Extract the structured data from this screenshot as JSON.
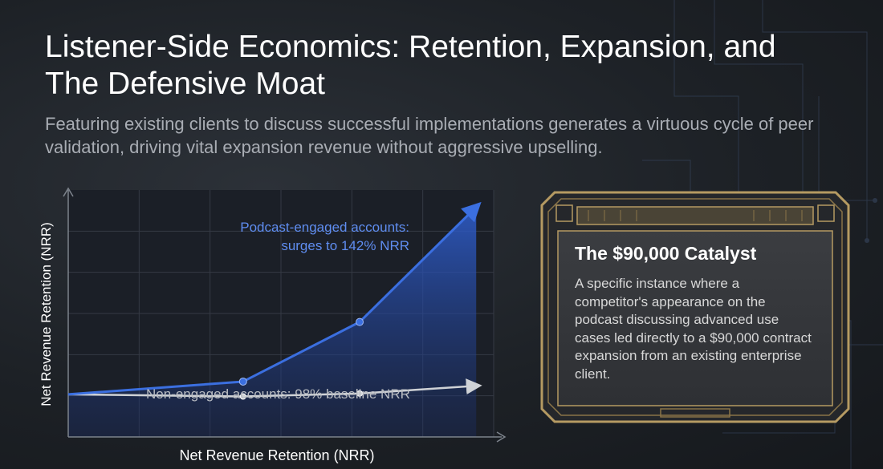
{
  "title": "Listener-Side Economics: Retention, Expansion, and The Defensive Moat",
  "subtitle": "Featuring existing clients to discuss successful implementations generates a virtuous cycle of peer validation, driving vital expansion revenue without aggressive upselling.",
  "chart_data": {
    "type": "line",
    "title": "",
    "xlabel": "Net Revenue Retention (NRR)",
    "ylabel": "Net Revenue Retention (NRR)",
    "x": [
      0,
      1,
      2,
      3
    ],
    "xlim": [
      -0.5,
      3.15
    ],
    "ylim": [
      88,
      146
    ],
    "grid": true,
    "series": [
      {
        "name": "Podcast-engaged accounts",
        "values": [
          98,
          101,
          115,
          142
        ],
        "color": "#3b6fe0"
      },
      {
        "name": "Non-engaged accounts",
        "values": [
          98,
          97.5,
          98.2,
          100
        ],
        "color": "#cfd2d6"
      }
    ],
    "annotations": {
      "engaged_line1": "Podcast-engaged accounts:",
      "engaged_line2": "surges to 142% NRR",
      "non_engaged": "Non-engaged accounts: 98% baseline NRR"
    }
  },
  "card": {
    "title": "The $90,000 Catalyst",
    "body": "A specific instance where a competitor's appearance on the podcast discussing advanced use cases led directly to a $90,000 contract expansion from an existing enterprise client.",
    "frame_color": "#b59a62"
  }
}
